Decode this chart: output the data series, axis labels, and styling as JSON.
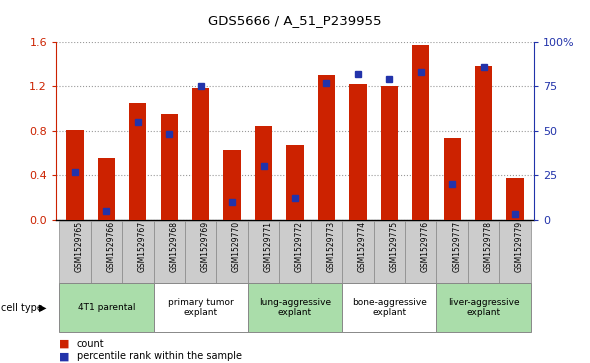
{
  "title": "GDS5666 / A_51_P239955",
  "samples": [
    "GSM1529765",
    "GSM1529766",
    "GSM1529767",
    "GSM1529768",
    "GSM1529769",
    "GSM1529770",
    "GSM1529771",
    "GSM1529772",
    "GSM1529773",
    "GSM1529774",
    "GSM1529775",
    "GSM1529776",
    "GSM1529777",
    "GSM1529778",
    "GSM1529779"
  ],
  "counts": [
    0.81,
    0.55,
    1.05,
    0.95,
    1.18,
    0.63,
    0.84,
    0.67,
    1.3,
    1.22,
    1.2,
    1.57,
    0.73,
    1.38,
    0.37
  ],
  "percentile_ranks": [
    27,
    5,
    55,
    48,
    75,
    10,
    30,
    12,
    77,
    82,
    79,
    83,
    20,
    86,
    3
  ],
  "bar_color": "#cc2200",
  "marker_color": "#2233aa",
  "ylim_left": [
    0,
    1.6
  ],
  "ylim_right": [
    0,
    100
  ],
  "yticks_left": [
    0,
    0.4,
    0.8,
    1.2,
    1.6
  ],
  "yticks_right": [
    0,
    25,
    50,
    75,
    100
  ],
  "ytick_labels_right": [
    "0",
    "25",
    "50",
    "75",
    "100%"
  ],
  "grid_color": "#999999",
  "bar_width": 0.55,
  "sample_box_color": "#cccccc",
  "ct_colors": [
    "#aaddaa",
    "#ffffff",
    "#aaddaa",
    "#ffffff",
    "#aaddaa"
  ],
  "ct_data": [
    [
      0,
      2,
      "4T1 parental"
    ],
    [
      3,
      5,
      "primary tumor\nexplant"
    ],
    [
      6,
      8,
      "lung-aggressive\nexplant"
    ],
    [
      9,
      11,
      "bone-aggressive\nexplant"
    ],
    [
      12,
      14,
      "liver-aggressive\nexplant"
    ]
  ]
}
